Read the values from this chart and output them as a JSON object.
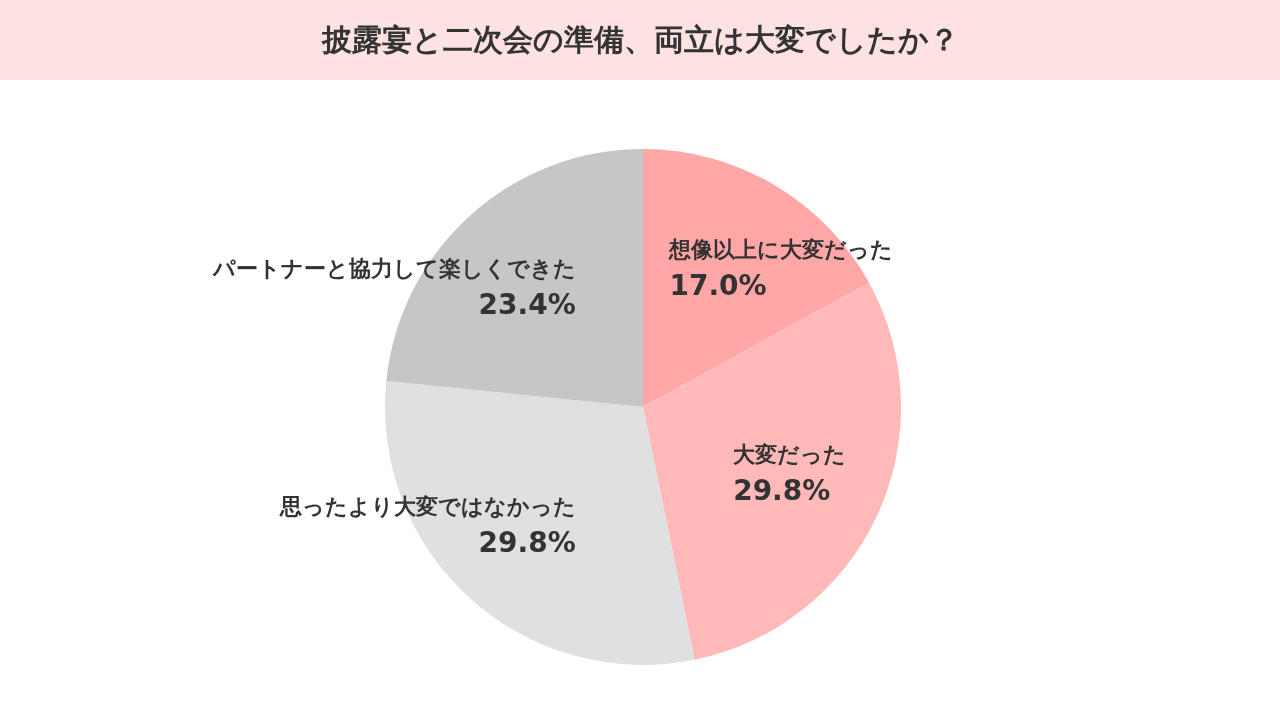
{
  "chart_data": {
    "type": "pie",
    "title": "披露宴と二次会の準備、両立は大変でしたか？",
    "categories": [
      "想像以上に大変だった",
      "大変だった",
      "思ったより大変ではなかった",
      "パートナーと協力して楽しくできた"
    ],
    "values": [
      17.0,
      29.8,
      29.8,
      23.4
    ],
    "value_labels": [
      "17.0%",
      "29.8%",
      "29.8%",
      "23.4%"
    ],
    "colors": [
      "#ffa6a6",
      "#ffb9b9",
      "#dfe0e2",
      "#c8c5c7"
    ],
    "legend": false
  }
}
